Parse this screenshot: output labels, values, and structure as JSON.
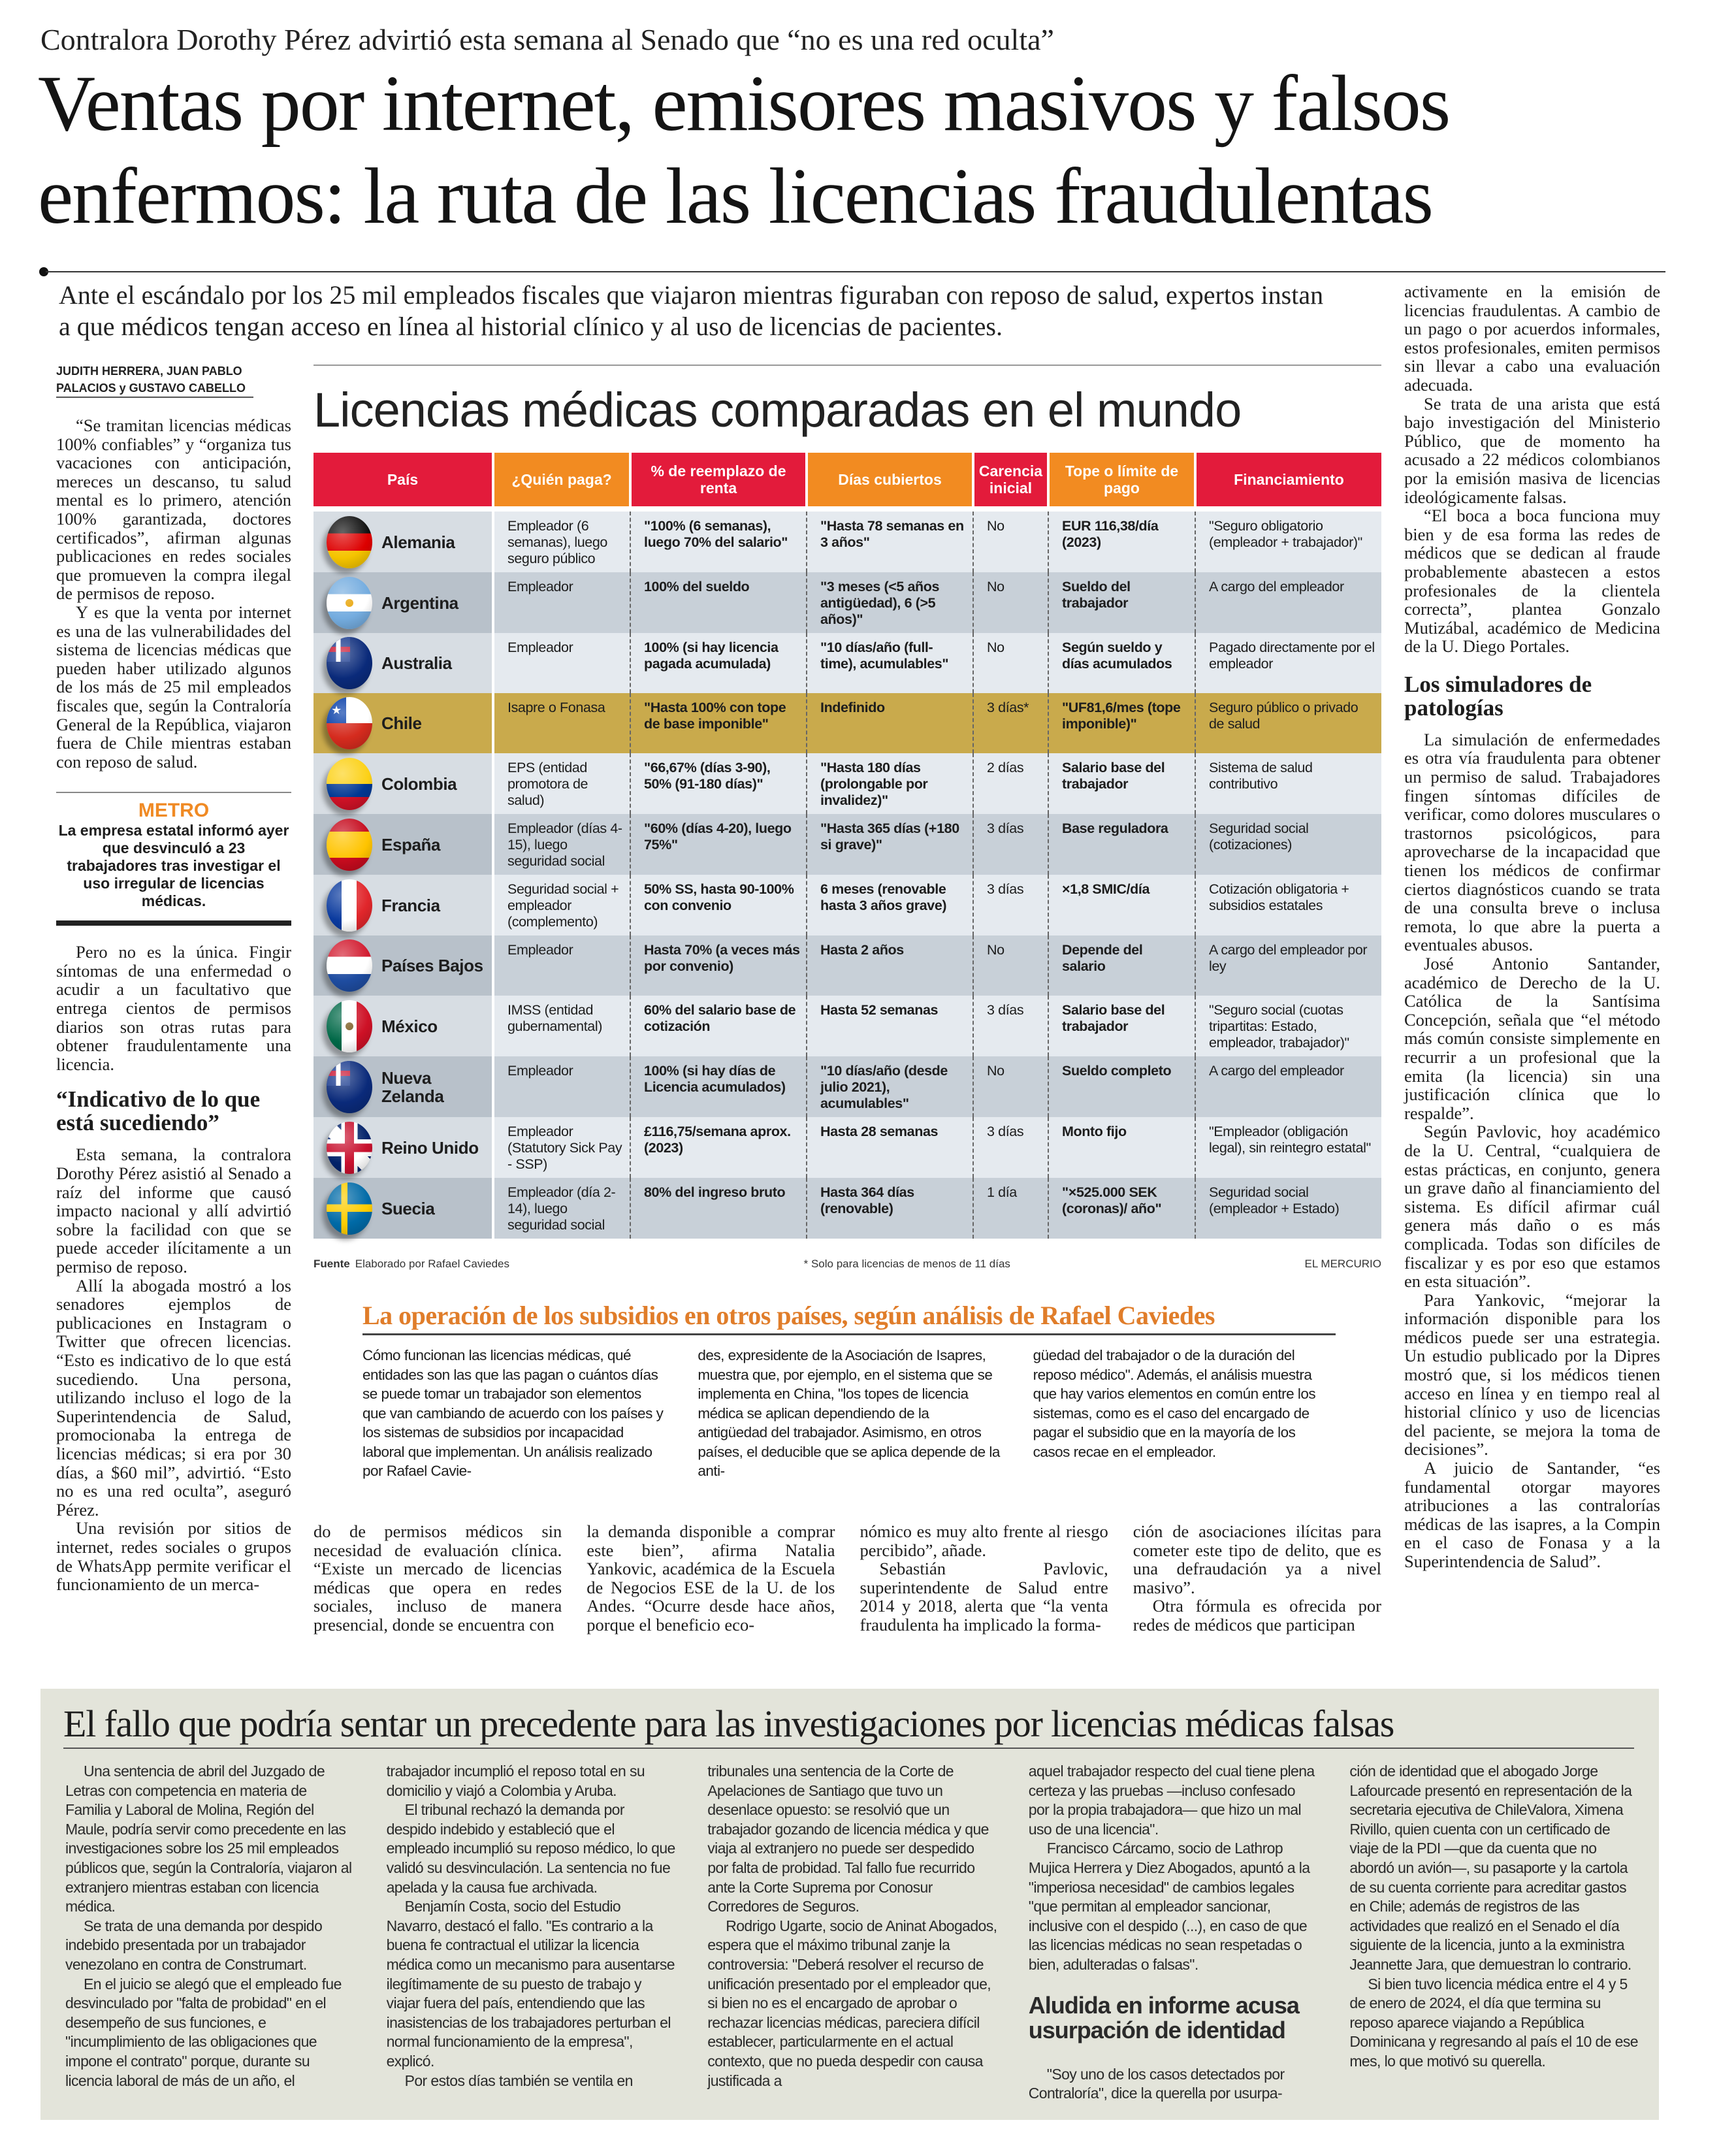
{
  "kicker": "Contralora Dorothy Pérez advirtió esta semana al Senado que “no es una red oculta”",
  "headline": [
    "Ventas por internet, emisores masivos y falsos",
    "enfermos: la ruta de las licencias fraudulentas"
  ],
  "deck": "Ante el escándalo por los 25 mil empleados fiscales que viajaron mientras figuraban con reposo de salud, expertos instan a que médicos tengan acceso en línea al historial clínico y al uso de licencias de pacientes.",
  "byline": [
    "JUDITH HERRERA, JUAN PABLO",
    "PALACIOS y GUSTAVO CABELLO"
  ],
  "left_column": {
    "paragraphs_a": [
      "“Se tramitan licencias médicas 100% confiables” y “organiza tus vacaciones con anticipación, mereces un descanso, tu salud mental es lo primero, atención 100% garantizada, doctores certificados”, afirman algunas publicaciones en redes sociales que promueven la compra ilegal de permisos de reposo.",
      "Y es que la venta por internet es una de las vulnerabilidades del sistema de licencias médicas que pueden haber utilizado algunos de los más de 25 mil empleados fiscales que, según la Contraloría General de la República, viajaron fuera de Chile mientras estaban con reposo de salud."
    ],
    "metro": {
      "label": "METRO",
      "text": "La empresa estatal informó ayer que desvinculó a 23 trabajadores tras investigar el uso irregular de licencias médicas."
    },
    "paragraphs_b": [
      "Pero no es la única. Fingir síntomas de una enfermedad o acudir a un facultativo que entrega cientos de permisos diarios son otras rutas para obtener fraudulentamente una licencia."
    ],
    "subhead": "“Indicativo de lo que está sucediendo”",
    "paragraphs_c": [
      "Esta semana, la contralora Dorothy Pérez asistió al Senado a raíz del informe que causó impacto nacional y allí advirtió sobre la facilidad con que se puede acceder ilícitamente a un permiso de reposo.",
      "Allí la abogada mostró a los senadores ejemplos de publicaciones en Instagram o Twitter que ofrecen licencias. “Esto es indicativo de lo que está sucediendo. Una persona, utilizando incluso el logo de la Superintendencia de Salud, promocionaba la entrega de licencias médicas; si era por 30 días, a $60 mil”, advirtió. “Esto no es una red oculta”, aseguró Pérez.",
      "Una revisión por sitios de internet, redes sociales o grupos de WhatsApp permite verificar el funcionamiento de un merca-"
    ]
  },
  "table": {
    "title": "Licencias médicas comparadas en el mundo",
    "headers": [
      "País",
      "¿Quién paga?",
      "% de reemplazo de renta",
      "Días cubiertos",
      "Carencia inicial",
      "Tope o límite de pago",
      "Financiamiento"
    ],
    "header_colors": [
      "#e31b3b",
      "#f28b21"
    ],
    "rows": [
      {
        "country": "Alemania",
        "flag": "germany-flag-icon",
        "cells": [
          "Empleador (6 semanas), luego seguro público",
          "\"100% (6 semanas), luego 70% del salario\"",
          "\"Hasta 78 semanas en 3 años\"",
          "No",
          "EUR 116,38/día (2023)",
          "\"Seguro obligatorio (empleador + trabajador)\""
        ]
      },
      {
        "country": "Argentina",
        "flag": "argentina-flag-icon",
        "cells": [
          "Empleador",
          "100% del sueldo",
          "\"3 meses (<5 años antigüedad), 6 (>5 años)\"",
          "No",
          "Sueldo del trabajador",
          "A cargo del empleador"
        ]
      },
      {
        "country": "Australia",
        "flag": "australia-flag-icon",
        "cells": [
          "Empleador",
          "100% (si hay licencia pagada acumulada)",
          "\"10 días/año (full-time), acumulables\"",
          "No",
          "Según sueldo y días acumulados",
          "Pagado directamente por el empleador"
        ]
      },
      {
        "country": "Chile",
        "flag": "chile-flag-icon",
        "highlight": true,
        "cells": [
          "Isapre o Fonasa",
          "\"Hasta 100% con tope de base imponible\"",
          "Indefinido",
          "3 días*",
          "\"UF81,6/mes (tope imponible)\"",
          "Seguro público o privado de salud"
        ]
      },
      {
        "country": "Colombia",
        "flag": "colombia-flag-icon",
        "cells": [
          "EPS (entidad promotora de salud)",
          "\"66,67% (días 3-90), 50% (91-180 días)\"",
          "\"Hasta 180 días (prolongable por invalidez)\"",
          "2 días",
          "Salario base del trabajador",
          "Sistema de salud contributivo"
        ]
      },
      {
        "country": "España",
        "flag": "spain-flag-icon",
        "cells": [
          "Empleador (días 4-15), luego seguridad social",
          "\"60% (días 4-20), luego 75%\"",
          "\"Hasta 365 días (+180 si grave)\"",
          "3 días",
          "Base reguladora",
          "Seguridad social (cotizaciones)"
        ]
      },
      {
        "country": "Francia",
        "flag": "france-flag-icon",
        "cells": [
          "Seguridad social + empleador (complemento)",
          "50% SS, hasta 90-100% con convenio",
          "6 meses (renovable hasta 3 años grave)",
          "3 días",
          "×1,8 SMIC/día",
          "Cotización obligatoria + subsidios estatales"
        ]
      },
      {
        "country": "Países Bajos",
        "flag": "netherlands-flag-icon",
        "cells": [
          "Empleador",
          "Hasta 70% (a veces más por convenio)",
          "Hasta 2 años",
          "No",
          "Depende del salario",
          "A cargo del empleador por ley"
        ]
      },
      {
        "country": "México",
        "flag": "mexico-flag-icon",
        "cells": [
          "IMSS (entidad gubernamental)",
          "60% del salario base de cotización",
          "Hasta 52 semanas",
          "3 días",
          "Salario base del trabajador",
          "\"Seguro social (cuotas tripartitas: Estado, empleador, trabajador)\""
        ]
      },
      {
        "country": "Nueva Zelanda",
        "flag": "new-zealand-flag-icon",
        "cells": [
          "Empleador",
          "100% (si hay días de Licencia acumulados)",
          "\"10 días/año (desde julio 2021), acumulables\"",
          "No",
          "Sueldo completo",
          "A cargo del empleador"
        ]
      },
      {
        "country": "Reino Unido",
        "flag": "united-kingdom-flag-icon",
        "cells": [
          "Empleador (Statutory Sick Pay - SSP)",
          "£116,75/semana aprox. (2023)",
          "Hasta 28 semanas",
          "3 días",
          "Monto fijo",
          "\"Empleador (obligación legal), sin reintegro estatal\""
        ]
      },
      {
        "country": "Suecia",
        "flag": "sweden-flag-icon",
        "cells": [
          "Empleador (día 2-14), luego seguridad social",
          "80% del ingreso bruto",
          "Hasta 364 días (renovable)",
          "1 día",
          "\"×525.000 SEK (coronas)/ año\"",
          "Seguridad social (empleador + Estado)"
        ]
      }
    ],
    "highlight_color": "#c9aa4c",
    "source_label": "Fuente",
    "source_text": "Elaborado por Rafael Caviedes",
    "footnote": "* Solo para licencias de menos de 11 días",
    "credit": "EL MERCURIO"
  },
  "subsidies": {
    "title": "La operación de los subsidios en otros países, según análisis de Rafael Caviedes",
    "title_color": "#e07d2a",
    "columns": [
      "Cómo funcionan las licencias médicas, qué entidades son las que las pagan o cuántos días se puede tomar un trabajador son elementos que van cambiando de acuerdo con los países y los sistemas de subsidios por incapacidad laboral que implementan. Un análisis realizado por Rafael Cavie-",
      "des, expresidente de la Asociación de Isapres, muestra que, por ejemplo, en el sistema que se implementa en China, \"los topes de licencia médica se aplican dependiendo de la antigüedad del trabajador. Asimismo, en otros países, el deducible que se aplica depende de la anti-",
      "güedad del trabajador o de la duración del reposo médico\". Además, el análisis muestra que hay varios elementos en común entre los sistemas, como es el caso del encargado de pagar el subsidio que en la mayoría de los casos recae en el empleador."
    ]
  },
  "lower_columns": [
    [
      "do de permisos médicos sin necesidad de evaluación clínica. “Existe un mercado de licencias médicas que opera en redes sociales, incluso de manera presencial, donde se encuentra con"
    ],
    [
      "la demanda disponible a comprar este bien”, afirma Natalia Yankovic, académica de la Escuela de Negocios ESE de la U. de los Andes. “Ocurre desde hace años, porque el beneficio eco-"
    ],
    [
      "nómico es muy alto frente al riesgo percibido”, añade.",
      "Sebastián Pavlovic, superintendente de Salud entre 2014 y 2018, alerta que “la venta fraudulenta ha implicado la forma-"
    ],
    [
      "ción de asociaciones ilícitas para cometer este tipo de delito, que es una defraudación ya a nivel masivo”.",
      "Otra fórmula es ofrecida por redes de médicos que participan"
    ]
  ],
  "right_column": {
    "paragraphs_a": [
      "activamente en la emisión de licencias fraudulentas. A cambio de un pago o por acuerdos informales, estos profesionales, emiten permisos sin llevar a cabo una evaluación adecuada.",
      "Se trata de una arista que está bajo investigación del Ministerio Público, que de momento ha acusado a 22 médicos colombianos por la emisión masiva de licencias ideológicamente falsas.",
      "“El boca a boca funciona muy bien y de esa forma las redes de médicos que se dedican al fraude probablemente abastecen a estos profesionales de la clientela correcta”, plantea Gonzalo Mutizábal, académico de Medicina de la U. Diego Portales."
    ],
    "subhead": "Los simuladores de patologías",
    "paragraphs_b": [
      "La simulación de enfermedades es otra vía fraudulenta para obtener un permiso de salud. Trabajadores fingen síntomas difíciles de verificar, como dolores musculares o trastornos psicológicos, para aprovecharse de la incapacidad que tienen los médicos de confirmar ciertos diagnósticos cuando se trata de una consulta breve o inclusa remota, lo que abre la puerta a eventuales abusos.",
      "José Antonio Santander, académico de Derecho de la U. Católica de la Santísima Concepción, señala que “el método más común consiste simplemente en recurrir a un profesional que la emita (la licencia) sin una justificación clínica que lo respalde”.",
      "Según Pavlovic, hoy académico de la U. Central, “cualquiera de estas prácticas, en conjunto, genera un grave daño al financiamiento del sistema. Es difícil afirmar cuál genera más daño o es más complicada. Todas son difíciles de fiscalizar y es por eso que estamos en esta situación”.",
      "Para Yankovic, “mejorar la información disponible para los médicos puede ser una estrategia. Un estudio publicado por la Dipres mostró que, si los médicos tienen acceso en línea y en tiempo real al historial clínico y uso de licencias del paciente, se mejora la toma de decisiones”.",
      "A juicio de Santander, “es fundamental otorgar mayores atribuciones a las contralorías médicas de las isapres, a la Compin en el caso de Fonasa y a la Superintendencia de Salud”."
    ]
  },
  "box": {
    "title": "El fallo que podría sentar un precedente para las investigaciones por licencias médicas falsas",
    "background": "#e3e4da",
    "columns": [
      {
        "paragraphs": [
          "Una sentencia de abril del Juzgado de Letras con competencia en materia de Familia y Laboral de Molina, Región del Maule, podría servir como precedente en las investigaciones sobre los 25 mil empleados públicos que, según la Contraloría, viajaron al extranjero mientras estaban con licencia médica.",
          "Se trata de una demanda por despido indebido presentada por un trabajador venezolano en contra de Construmart.",
          "En el juicio se alegó que el empleado fue desvinculado por \"falta de probidad\" en el desempeño de sus funciones, e \"incumplimiento de las obligaciones que impone el contrato\" porque, durante su licencia laboral de más de un año, el"
        ]
      },
      {
        "paragraphs": [
          "trabajador incumplió el reposo total en su domicilio y viajó a Colombia y Aruba.",
          "El tribunal rechazó la demanda por despido indebido y estableció que el empleado incumplió su reposo médico, lo que validó su desvinculación. La sentencia no fue apelada y la causa fue archivada.",
          "Benjamín Costa, socio del Estudio Navarro, destacó el fallo. \"Es contrario a la buena fe contractual el utilizar la licencia médica como un mecanismo para ausentarse ilegítimamente de su puesto de trabajo y viajar fuera del país, entendiendo que las inasistencias de los trabajadores perturban el normal funcionamiento de la empresa\", explicó.",
          "Por estos días también se ventila en"
        ]
      },
      {
        "paragraphs": [
          "tribunales una sentencia de la Corte de Apelaciones de Santiago que tuvo un desenlace opuesto: se resolvió que un trabajador gozando de licencia médica y que viaja al extranjero no puede ser despedido por falta de probidad. Tal fallo fue recurrido ante la Corte Suprema por Conosur Corredores de Seguros.",
          "Rodrigo Ugarte, socio de Aninat Abogados, espera que el máximo tribunal zanje la controversia: \"Deberá resolver el recurso de unificación presentado por el empleador que, si bien no es el encargado de aprobar o rechazar licencias médicas, pareciera difícil establecer, particularmente en el actual contexto, que no pueda despedir con causa justificada a"
        ]
      },
      {
        "paragraphs": [
          "aquel trabajador respecto del cual tiene plena certeza y las pruebas —incluso confesado por la propia trabajadora— que hizo un mal uso de una licencia\".",
          "Francisco Cárcamo, socio de Lathrop Mujica Herrera y Diez Abogados, apuntó a la \"imperiosa necesidad\" de cambios legales \"que permitan al empleador sancionar, inclusive con el despido (...), en caso de que las licencias médicas no sean respetadas o bien, adulteradas o falsas\"."
        ],
        "subhead": "Aludida en informe acusa usurpación de identidad",
        "paragraphs_after": [
          "\"Soy uno de los casos detectados por Contraloría\", dice la querella por usurpa-"
        ]
      },
      {
        "paragraphs": [
          "ción de identidad que el abogado Jorge Lafourcade presentó en representación de la secretaria ejecutiva de ChileValora, Ximena Rivillo, quien cuenta con un certificado de viaje de la PDI —que da cuenta que no abordó un avión—, su pasaporte y la cartola de su cuenta corriente para acreditar gastos en Chile; además de registros de las actividades que realizó en el Senado el día siguiente de la licencia, junto a la exministra Jeannette Jara, que demuestran lo contrario.",
          "Si bien tuvo licencia médica entre el 4 y 5 de enero de 2024, el día que termina su reposo aparece viajando a República Dominicana y regresando al país el 10 de ese mes, lo que motivó su querella."
        ]
      }
    ]
  }
}
